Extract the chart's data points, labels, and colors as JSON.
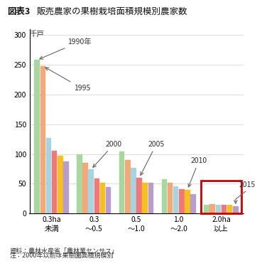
{
  "title_prefix": "図表3",
  "title_main": "販売農家の果樹栽培面積規模別農家数",
  "ylabel": "千戸",
  "categories": [
    "0.3ha\n未満",
    "0.3\n～0.5",
    "0.5\n～1.0",
    "1.0\n～2.0",
    "2.0ha\n以上"
  ],
  "years": [
    "1990",
    "1995",
    "2000",
    "2005",
    "2010",
    "2015"
  ],
  "year_data": [
    [
      258,
      100,
      104,
      57,
      15
    ],
    [
      248,
      85,
      90,
      51,
      16
    ],
    [
      127,
      74,
      77,
      46,
      15
    ],
    [
      106,
      59,
      60,
      41,
      14
    ],
    [
      97,
      51,
      52,
      40,
      15
    ],
    [
      87,
      44,
      51,
      33,
      12
    ]
  ],
  "bar_colors": [
    "#a8d8a0",
    "#f2a878",
    "#a8d4e0",
    "#f07878",
    "#f5c020",
    "#b89ccc"
  ],
  "hatch_patterns": [
    ".....",
    "",
    "",
    "////",
    "----",
    "\\\\\\\\"
  ],
  "hatch_colors": [
    "#a8d8a0",
    "#f2a878",
    "#a8d4e0",
    "#f07878",
    "#f5c020",
    "#b89ccc"
  ],
  "ylim": [
    0,
    310
  ],
  "yticks": [
    0,
    50,
    100,
    150,
    200,
    250,
    300
  ],
  "highlight_color": "#cc0000",
  "group_width": 0.82,
  "source_line1": "資料：農林水産省「農林業センサス」",
  "source_line2": "注：2000年以前は果樹園面積規模別"
}
